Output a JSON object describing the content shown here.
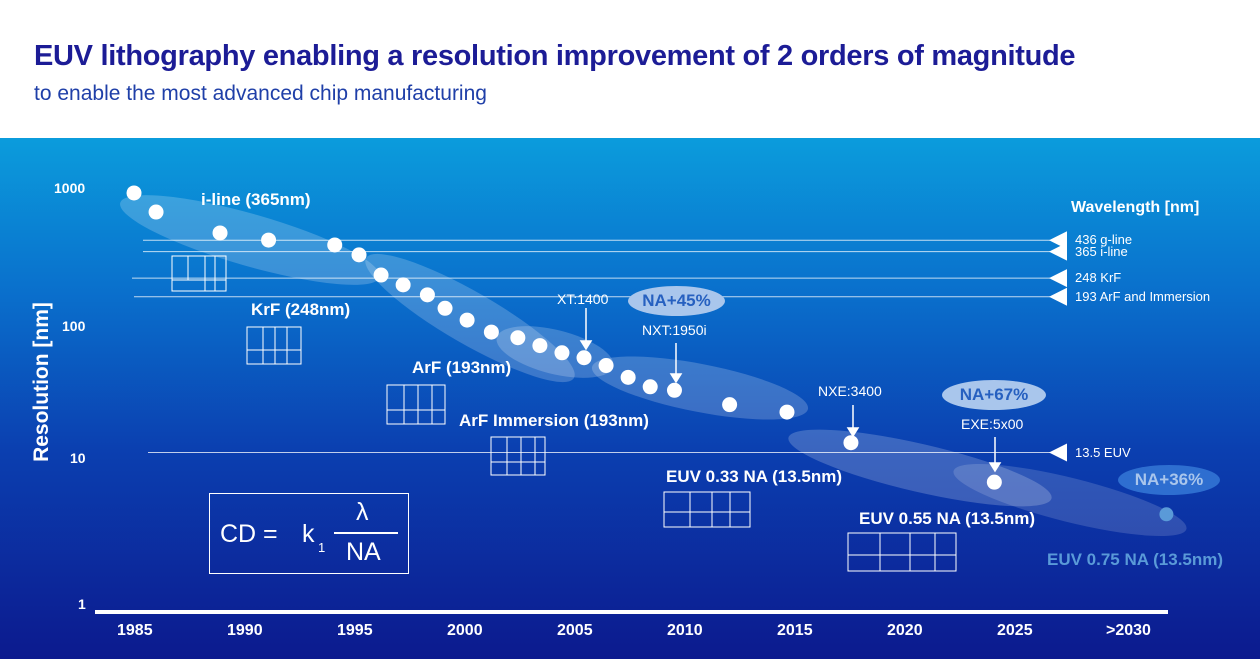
{
  "header": {
    "title": "EUV lithography enabling a resolution improvement of 2 orders of magnitude",
    "subtitle": "to enable the most advanced chip manufacturing"
  },
  "chart_data": {
    "type": "scatter",
    "title": "EUV lithography enabling a resolution improvement of 2 orders of magnitude",
    "ylabel": "Resolution [nm]",
    "xlabel": "",
    "yscale": "log",
    "ylim": [
      1,
      1000
    ],
    "yticks": [
      "1000",
      "100",
      "10",
      "1"
    ],
    "xticks": [
      "1985",
      "1990",
      "1995",
      "2000",
      "2005",
      "2010",
      "2015",
      "2020",
      "2025",
      ">2030"
    ],
    "xlim": [
      1983,
      2033
    ],
    "points": [
      {
        "year": 1985.0,
        "res": 950
      },
      {
        "year": 1986.0,
        "res": 685
      },
      {
        "year": 1988.9,
        "res": 478
      },
      {
        "year": 1991.1,
        "res": 423
      },
      {
        "year": 1994.1,
        "res": 389
      },
      {
        "year": 1995.2,
        "res": 328
      },
      {
        "year": 1996.2,
        "res": 232
      },
      {
        "year": 1997.2,
        "res": 196
      },
      {
        "year": 1998.3,
        "res": 165
      },
      {
        "year": 1999.1,
        "res": 131
      },
      {
        "year": 2000.1,
        "res": 107
      },
      {
        "year": 2001.2,
        "res": 87
      },
      {
        "year": 2002.4,
        "res": 79
      },
      {
        "year": 2003.4,
        "res": 69
      },
      {
        "year": 2004.4,
        "res": 61
      },
      {
        "year": 2005.4,
        "res": 56
      },
      {
        "year": 2006.4,
        "res": 49
      },
      {
        "year": 2007.4,
        "res": 40
      },
      {
        "year": 2008.4,
        "res": 34
      },
      {
        "year": 2009.5,
        "res": 32
      },
      {
        "year": 2012.0,
        "res": 25
      },
      {
        "year": 2014.6,
        "res": 22
      },
      {
        "year": 2017.5,
        "res": 13
      },
      {
        "year": 2024.0,
        "res": 6.6
      },
      {
        "year": 2031.8,
        "res": 3.8,
        "future": true
      }
    ],
    "wavelengths": {
      "title": "Wavelength [nm]",
      "lines": [
        {
          "value": 436,
          "label": "436 g-line"
        },
        {
          "value": 365,
          "label": "365 i-line"
        },
        {
          "value": 248,
          "label": "248 KrF"
        },
        {
          "value": 193,
          "label": "193 ArF and Immersion"
        },
        {
          "value": 13.5,
          "label": "13.5 EUV"
        }
      ]
    },
    "generations": [
      "i-line (365nm)",
      "KrF (248nm)",
      "ArF (193nm)",
      "ArF Immersion (193nm)",
      "EUV 0.33 NA (13.5nm)",
      "EUV 0.55 NA (13.5nm)",
      "EUV 0.75 NA (13.5nm)"
    ],
    "models": [
      "XT:1400",
      "NXT:1950i",
      "NXE:3400",
      "EXE:5x00"
    ],
    "na_badges": [
      "NA+45%",
      "NA+67%",
      "NA+36%"
    ],
    "formula": {
      "lhs": "CD =",
      "k": "k",
      "sub": "1",
      "num": "λ",
      "den": "NA"
    }
  },
  "colors": {
    "title": "#1c1c96",
    "dot": "#ffffff",
    "future_dot": "#5a9ad8"
  }
}
